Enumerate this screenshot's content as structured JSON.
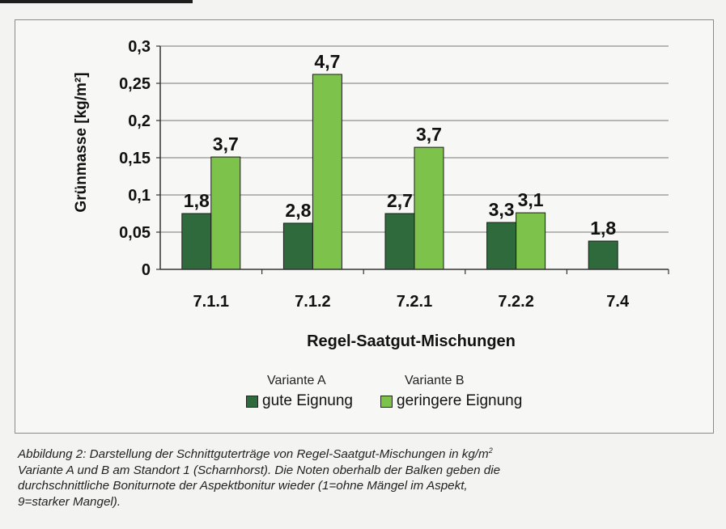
{
  "chart_data": {
    "type": "bar",
    "categories": [
      "7.1.1",
      "7.1.2",
      "7.2.1",
      "7.2.2",
      "7.4"
    ],
    "series": [
      {
        "name": "gute Eignung",
        "variant": "Variante A",
        "color": "#2f6a3c",
        "values": [
          0.075,
          0.062,
          0.075,
          0.063,
          0.038
        ],
        "labels": [
          "1,8",
          "2,8",
          "2,7",
          "3,3",
          "1,8"
        ]
      },
      {
        "name": "geringere Eignung",
        "variant": "Variante B",
        "color": "#7dc24b",
        "values": [
          0.151,
          0.262,
          0.164,
          0.076,
          null
        ],
        "labels": [
          "3,7",
          "4,7",
          "3,7",
          "3,1",
          null
        ]
      }
    ],
    "title": "",
    "xlabel": "Regel-Saatgut-Mischungen",
    "ylabel": "Grünmasse [kg/m²]",
    "ylim": [
      0,
      0.3
    ],
    "yticks": [
      0,
      0.05,
      0.1,
      0.15,
      0.2,
      0.25,
      0.3
    ],
    "ytick_labels": [
      "0",
      "0,05",
      "0,1",
      "0,15",
      "0,2",
      "0,25",
      "0,3"
    ],
    "grid": true,
    "legend_position": "bottom-center"
  },
  "legend": {
    "variant_a": "Variante A",
    "variant_b": "Variante B",
    "series_a": "gute Eignung",
    "series_b": "geringere Eignung"
  },
  "caption": {
    "line1": "Abbildung 2: Darstellung der Schnittguterträge von Regel-Saatgut-Mischungen in kg/m",
    "line1_sup": "2",
    "line2": "Variante A und B am Standort 1 (Scharnhorst). Die Noten oberhalb der Balken geben die",
    "line3": "durchschnittliche Boniturnote der Aspektbonitur wieder (1=ohne Mängel im Aspekt,",
    "line4": "9=starker Mangel)."
  }
}
